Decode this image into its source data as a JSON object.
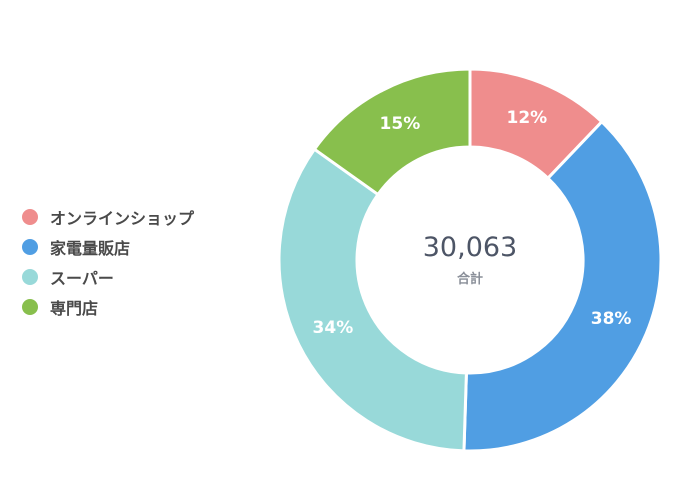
{
  "chart_data": {
    "type": "pie",
    "variant": "donut",
    "center": {
      "value": "30,063",
      "label": "合計"
    },
    "legend_position": "left",
    "slices": [
      {
        "name": "オンラインショップ",
        "value": 12,
        "label": "12%",
        "color": "#ef8d8d"
      },
      {
        "name": "家電量販店",
        "value": 38,
        "label": "38%",
        "color": "#509ee3"
      },
      {
        "name": "スーパー",
        "value": 34,
        "label": "34%",
        "color": "#98d9d9"
      },
      {
        "name": "専門店",
        "value": 15,
        "label": "15%",
        "color": "#88bf4d"
      }
    ]
  }
}
